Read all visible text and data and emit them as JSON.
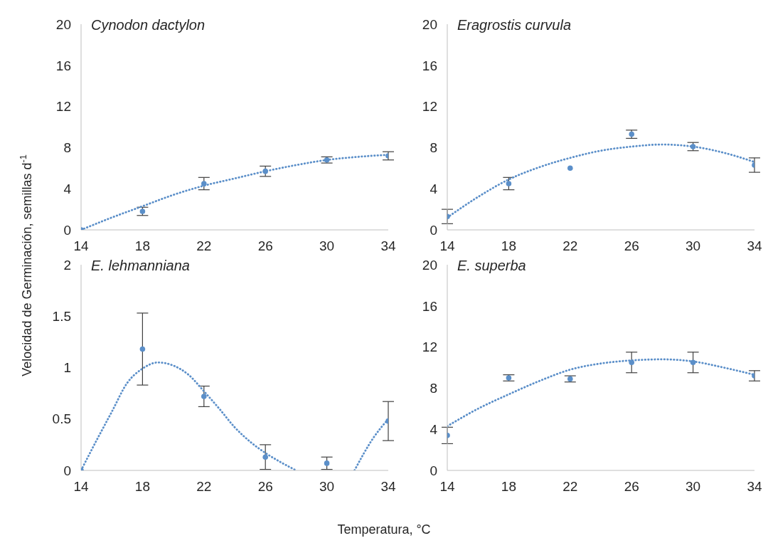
{
  "chart_data": [
    {
      "type": "scatter",
      "title": "Cynodon dactylon",
      "ylabel": "Velocidad de Germinación, semillas d$^{-1}$",
      "x": [
        14,
        18,
        22,
        26,
        30,
        34
      ],
      "xlim": [
        14,
        34
      ],
      "xticks": [
        14,
        18,
        22,
        26,
        30,
        34
      ],
      "ylim": [
        0,
        20
      ],
      "yticks": [
        0,
        4,
        8,
        12,
        16,
        20
      ],
      "grid": false,
      "marker": "circle",
      "series": [
        {
          "type": "scatter",
          "color": "#5b8fc9",
          "values": [
            0,
            1.8,
            4.5,
            5.7,
            6.8,
            7.2
          ],
          "errors": [
            null,
            0.4,
            0.6,
            0.5,
            0.3,
            0.4
          ]
        },
        {
          "type": "line",
          "color": "#5b8fc9",
          "line_style": "dotted",
          "marker": "none",
          "x": [
            14,
            16,
            18,
            20,
            22,
            24,
            26,
            28,
            30,
            32,
            34
          ],
          "values": [
            0,
            1.2,
            2.3,
            3.4,
            4.3,
            5.0,
            5.7,
            6.3,
            6.8,
            7.1,
            7.3
          ]
        }
      ]
    },
    {
      "type": "scatter",
      "title": "Eragrostis curvula",
      "x": [
        14,
        18,
        22,
        26,
        30,
        34
      ],
      "xlim": [
        14,
        34
      ],
      "xticks": [
        14,
        18,
        22,
        26,
        30,
        34
      ],
      "ylim": [
        0,
        20
      ],
      "yticks": [
        0,
        4,
        8,
        12,
        16,
        20
      ],
      "grid": false,
      "marker": "circle",
      "series": [
        {
          "type": "scatter",
          "color": "#5b8fc9",
          "values": [
            1.3,
            4.5,
            6.0,
            9.3,
            8.1,
            6.3
          ],
          "errors": [
            0.7,
            0.6,
            null,
            0.4,
            0.4,
            0.7
          ]
        },
        {
          "type": "line",
          "color": "#5b8fc9",
          "line_style": "dotted",
          "marker": "none",
          "x": [
            14,
            16,
            18,
            20,
            22,
            24,
            26,
            28,
            30,
            32,
            34
          ],
          "values": [
            1.2,
            3.2,
            4.9,
            6.1,
            7.0,
            7.7,
            8.1,
            8.3,
            8.1,
            7.5,
            6.6
          ]
        }
      ]
    },
    {
      "type": "scatter",
      "title": "E. lehmanniana",
      "xlabel": "Temperatura,  °C",
      "x": [
        14,
        18,
        22,
        26,
        30,
        34
      ],
      "xlim": [
        14,
        34
      ],
      "xticks": [
        14,
        18,
        22,
        26,
        30,
        34
      ],
      "ylim": [
        0,
        2
      ],
      "yticks": [
        0,
        0.5,
        1,
        1.5,
        2
      ],
      "grid": false,
      "marker": "circle",
      "series": [
        {
          "type": "scatter",
          "color": "#5b8fc9",
          "values": [
            0,
            1.18,
            0.72,
            0.13,
            0.07,
            0.48
          ],
          "errors": [
            null,
            0.35,
            0.1,
            0.12,
            0.06,
            0.19
          ]
        },
        {
          "type": "line",
          "color": "#5b8fc9",
          "line_style": "dotted",
          "marker": "none",
          "x": [
            14,
            15,
            16,
            17,
            18,
            19,
            20,
            21,
            22,
            23,
            24,
            25,
            26,
            27,
            28,
            30,
            31.8,
            33,
            34
          ],
          "values": [
            0,
            0.29,
            0.57,
            0.85,
            0.99,
            1.05,
            1.02,
            0.93,
            0.77,
            0.6,
            0.42,
            0.28,
            0.17,
            0.08,
            0,
            null,
            0,
            0.31,
            0.5
          ]
        }
      ]
    },
    {
      "type": "scatter",
      "title": "E. superba",
      "x": [
        14,
        18,
        22,
        26,
        30,
        34
      ],
      "xlim": [
        14,
        34
      ],
      "xticks": [
        14,
        18,
        22,
        26,
        30,
        34
      ],
      "ylim": [
        0,
        20
      ],
      "yticks": [
        0,
        4,
        8,
        12,
        16,
        20
      ],
      "grid": false,
      "marker": "circle",
      "series": [
        {
          "type": "scatter",
          "color": "#5b8fc9",
          "values": [
            3.4,
            9.0,
            8.9,
            10.5,
            10.5,
            9.2
          ],
          "errors": [
            0.8,
            0.3,
            0.3,
            1.0,
            1.0,
            0.5
          ]
        },
        {
          "type": "line",
          "color": "#5b8fc9",
          "line_style": "dotted",
          "marker": "none",
          "x": [
            14,
            16,
            18,
            20,
            22,
            24,
            26,
            28,
            30,
            32,
            34
          ],
          "values": [
            4.3,
            6.0,
            7.4,
            8.7,
            9.8,
            10.4,
            10.7,
            10.8,
            10.6,
            10.0,
            9.3
          ]
        }
      ]
    }
  ]
}
